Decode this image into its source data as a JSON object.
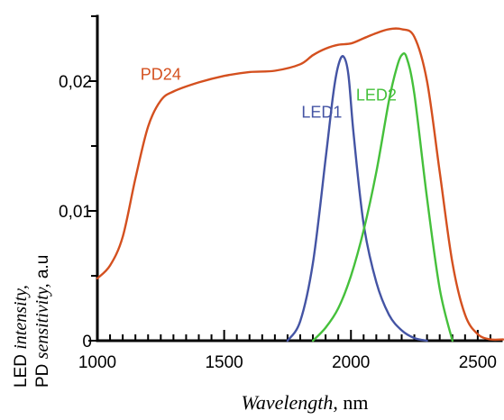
{
  "chart_data": {
    "type": "line",
    "title": "",
    "xlabel": {
      "italic": "Wavelength",
      "unit": ", nm"
    },
    "ylabel": {
      "line1": {
        "sans": "LED ",
        "italic": "intensity,"
      },
      "line2": {
        "sans": "PD ",
        "italic": "sensitivity,",
        "unit": " a.u"
      }
    },
    "xlim": [
      1000,
      2600
    ],
    "ylim": [
      0,
      0.025
    ],
    "x_ticks": [
      1000,
      1500,
      2000,
      2500
    ],
    "x_tick_labels": [
      "1000",
      "1500",
      "2000",
      "2500"
    ],
    "y_ticks": [
      0,
      0.01,
      0.02
    ],
    "y_tick_labels": [
      "0",
      "0,01",
      "0,02"
    ],
    "grid": false,
    "legend": "none",
    "series": [
      {
        "name": "PD24",
        "color": "#d4501f",
        "x": [
          1000,
          1050,
          1100,
          1150,
          1200,
          1250,
          1300,
          1400,
          1500,
          1600,
          1700,
          1800,
          1850,
          1900,
          1950,
          2000,
          2050,
          2100,
          2150,
          2200,
          2250,
          2300,
          2350,
          2400,
          2450,
          2500,
          2550,
          2600
        ],
        "values": [
          0.0048,
          0.0058,
          0.008,
          0.0125,
          0.0165,
          0.0185,
          0.0192,
          0.0199,
          0.0204,
          0.0207,
          0.0208,
          0.0213,
          0.022,
          0.0225,
          0.0228,
          0.0229,
          0.0233,
          0.0237,
          0.024,
          0.024,
          0.0234,
          0.02,
          0.013,
          0.006,
          0.002,
          0.0005,
          0.0001,
          0.0001
        ]
      },
      {
        "name": "LED1",
        "color": "#4454a4",
        "x": [
          1750,
          1800,
          1850,
          1900,
          1930,
          1950,
          1970,
          1990,
          2010,
          2050,
          2100,
          2150,
          2200,
          2250,
          2300
        ],
        "values": [
          0.0,
          0.0015,
          0.006,
          0.014,
          0.019,
          0.0212,
          0.0219,
          0.0205,
          0.016,
          0.009,
          0.0045,
          0.002,
          0.0008,
          0.0002,
          0.0
        ]
      },
      {
        "name": "LED2",
        "color": "#45c03b",
        "x": [
          1850,
          1900,
          1950,
          2000,
          2050,
          2100,
          2150,
          2180,
          2200,
          2220,
          2250,
          2300,
          2350,
          2400
        ],
        "values": [
          0.0,
          0.001,
          0.0025,
          0.005,
          0.0085,
          0.013,
          0.0185,
          0.021,
          0.022,
          0.0218,
          0.019,
          0.011,
          0.004,
          0.0
        ]
      }
    ],
    "annotations": [
      {
        "text": "PD24",
        "series": "PD24",
        "color": "#d4501f",
        "x": 1250,
        "y": 0.0201,
        "anchor": "middle"
      },
      {
        "text": "LED1",
        "series": "LED1",
        "color": "#4454a4",
        "x": 1885,
        "y": 0.0172,
        "anchor": "middle"
      },
      {
        "text": "LED2",
        "series": "LED2",
        "color": "#45c03b",
        "x": 2100,
        "y": 0.0185,
        "anchor": "middle"
      }
    ]
  }
}
